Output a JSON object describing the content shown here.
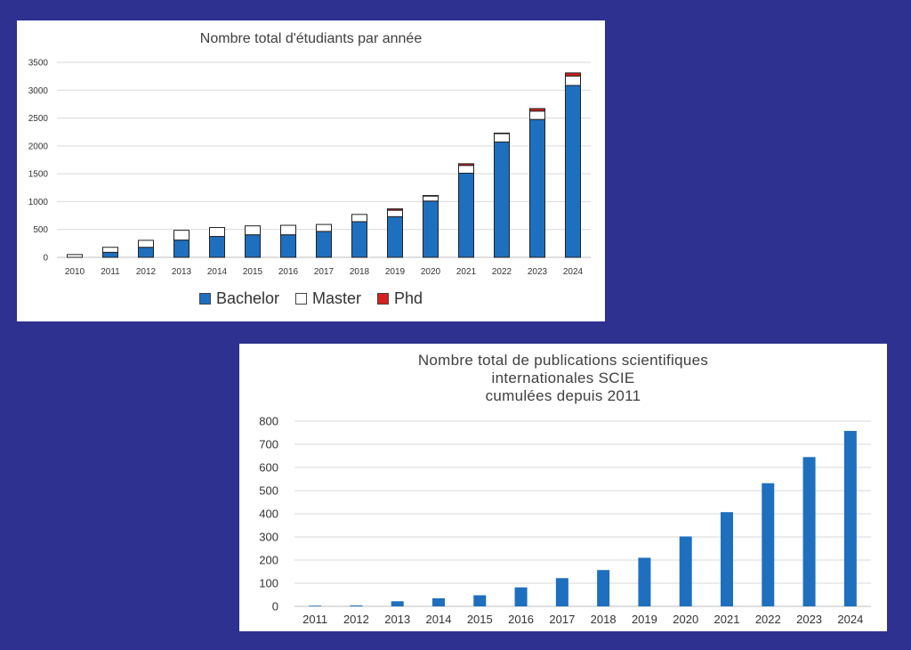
{
  "colors": {
    "background": "#2e318f",
    "bachelor": "#1f6fbf",
    "master": "#ffffff",
    "phd": "#d62020",
    "publications": "#1f6fbf"
  },
  "chart_data": [
    {
      "type": "bar",
      "stacked": true,
      "title": "Nombre total d'étudiants par année",
      "xlabel": "",
      "ylabel": "",
      "ylim": [
        0,
        3500
      ],
      "yticks": [
        0,
        500,
        1000,
        1500,
        2000,
        2500,
        3000,
        3500
      ],
      "grid": true,
      "legend_position": "bottom",
      "categories": [
        "2010",
        "2011",
        "2012",
        "2013",
        "2014",
        "2015",
        "2016",
        "2017",
        "2018",
        "2019",
        "2020",
        "2021",
        "2022",
        "2023",
        "2024"
      ],
      "series": [
        {
          "name": "Bachelor",
          "values": [
            0,
            90,
            180,
            310,
            375,
            405,
            405,
            465,
            640,
            730,
            1010,
            1510,
            2070,
            2475,
            3085
          ]
        },
        {
          "name": "Master",
          "values": [
            50,
            90,
            125,
            175,
            160,
            160,
            170,
            125,
            130,
            115,
            90,
            140,
            150,
            150,
            170
          ]
        },
        {
          "name": "Phd",
          "values": [
            0,
            0,
            0,
            0,
            0,
            0,
            0,
            0,
            0,
            25,
            10,
            30,
            10,
            45,
            55
          ]
        }
      ]
    },
    {
      "type": "bar",
      "stacked": false,
      "title": "Nombre total de publications scientifiques\ninternationales SCIE\ncumulées depuis 2011",
      "xlabel": "",
      "ylabel": "",
      "ylim": [
        0,
        800
      ],
      "yticks": [
        0,
        100,
        200,
        300,
        400,
        500,
        600,
        700,
        800
      ],
      "grid": true,
      "categories": [
        "2011",
        "2012",
        "2013",
        "2014",
        "2015",
        "2016",
        "2017",
        "2018",
        "2019",
        "2020",
        "2021",
        "2022",
        "2023",
        "2024"
      ],
      "values": [
        3,
        4,
        22,
        35,
        48,
        82,
        122,
        157,
        210,
        302,
        407,
        532,
        645,
        758
      ]
    }
  ]
}
